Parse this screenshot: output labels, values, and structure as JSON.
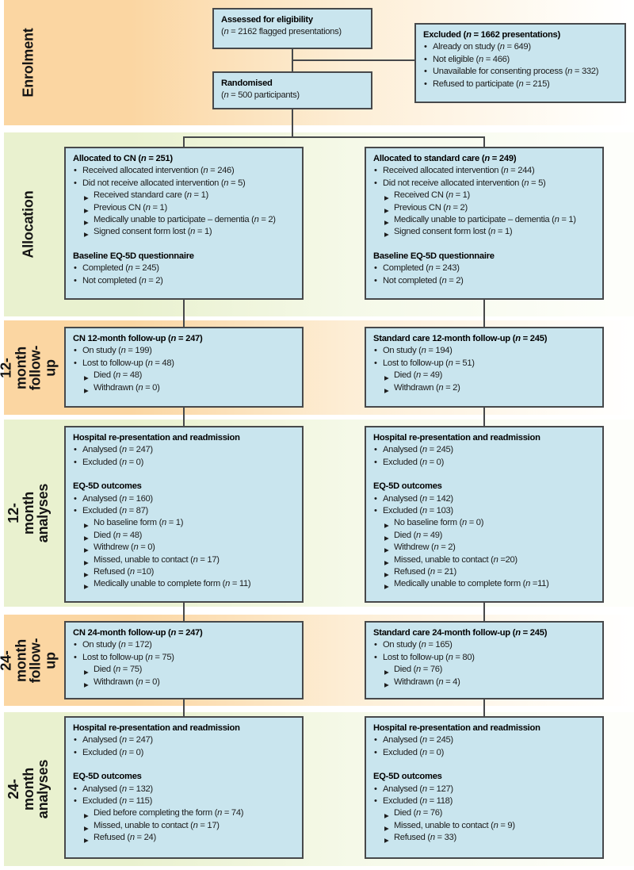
{
  "markers": {
    "bullet": "•",
    "sub": "▶"
  },
  "colors": {
    "band-peach": "#fbd6a2",
    "band-peach-mid": "#fdeed6",
    "band-peach-end": "#fffdf9",
    "band-green": "#e9f1cf",
    "band-green-mid": "#f5f9e8",
    "band-green-end": "#fdfefa",
    "box-fill": "#c9e5ee",
    "box-border": "#47494b",
    "line": "#47494b",
    "text": "#1c1c1c"
  },
  "sections": [
    {
      "id": "enrolment",
      "label": "Enrolment",
      "tone": "peach"
    },
    {
      "id": "allocation",
      "label": "Allocation",
      "tone": "green"
    },
    {
      "id": "follow-up-12",
      "label": "12-month\nfollow-up",
      "tone": "peach"
    },
    {
      "id": "analyses-12",
      "label": "12-month analyses",
      "tone": "green"
    },
    {
      "id": "follow-up-24",
      "label": "24-month\nfollow-up",
      "tone": "peach"
    },
    {
      "id": "analyses-24",
      "label": "24-month analyses",
      "tone": "green"
    }
  ],
  "boxes": {
    "assessed": {
      "lines": [
        {
          "t": "head",
          "text": "Assessed for eligibility"
        },
        {
          "t": "p",
          "text": "(n = 2162 flagged presentations)"
        }
      ]
    },
    "excluded": {
      "lines": [
        {
          "t": "head",
          "text": "Excluded (n = 1662 presentations)"
        },
        {
          "t": "b",
          "text": "Already on study (n = 649)"
        },
        {
          "t": "b",
          "text": "Not eligible (n = 466)"
        },
        {
          "t": "b",
          "text": "Unavailable for consenting process (n = 332)"
        },
        {
          "t": "b",
          "text": "Refused to participate (n = 215)"
        }
      ]
    },
    "randomised": {
      "lines": [
        {
          "t": "head",
          "text": "Randomised"
        },
        {
          "t": "p",
          "text": "(n = 500 participants)"
        }
      ]
    },
    "alloc_cn": {
      "lines": [
        {
          "t": "head",
          "text": "Allocated to CN (n = 251)"
        },
        {
          "t": "b",
          "text": "Received allocated intervention (n = 246)"
        },
        {
          "t": "b",
          "text": "Did not receive allocated intervention (n = 5)"
        },
        {
          "t": "s",
          "text": "Received standard care (n = 1)"
        },
        {
          "t": "s",
          "text": "Previous CN (n = 1)"
        },
        {
          "t": "s",
          "text": "Medically unable to participate – dementia (n = 2)"
        },
        {
          "t": "s",
          "text": "Signed consent form lost (n = 1)"
        },
        {
          "t": "gap"
        },
        {
          "t": "head",
          "text": "Baseline EQ-5D questionnaire"
        },
        {
          "t": "b",
          "text": "Completed (n = 245)"
        },
        {
          "t": "b",
          "text": "Not completed (n = 2)"
        }
      ]
    },
    "alloc_sc": {
      "lines": [
        {
          "t": "head",
          "text": "Allocated to standard care (n = 249)"
        },
        {
          "t": "b",
          "text": "Received allocated intervention (n = 244)"
        },
        {
          "t": "b",
          "text": "Did not receive allocated intervention (n = 5)"
        },
        {
          "t": "s",
          "text": "Received CN (n = 1)"
        },
        {
          "t": "s",
          "text": "Previous CN (n = 2)"
        },
        {
          "t": "s",
          "text": "Medically unable to participate – dementia (n = 1)"
        },
        {
          "t": "s",
          "text": "Signed consent form lost (n = 1)"
        },
        {
          "t": "gap"
        },
        {
          "t": "head",
          "text": "Baseline EQ-5D questionnaire"
        },
        {
          "t": "b",
          "text": "Completed (n = 243)"
        },
        {
          "t": "b",
          "text": "Not completed (n = 2)"
        }
      ]
    },
    "fu12_cn": {
      "lines": [
        {
          "t": "head",
          "text": "CN 12-month follow-up (n = 247)"
        },
        {
          "t": "b",
          "text": "On study (n = 199)"
        },
        {
          "t": "b",
          "text": "Lost to follow-up (n = 48)"
        },
        {
          "t": "s",
          "text": "Died (n = 48)"
        },
        {
          "t": "s",
          "text": "Withdrawn (n = 0)"
        }
      ]
    },
    "fu12_sc": {
      "lines": [
        {
          "t": "head",
          "text": "Standard care 12-month follow-up (n = 245)"
        },
        {
          "t": "b",
          "text": "On study (n = 194)"
        },
        {
          "t": "b",
          "text": "Lost to follow-up (n = 51)"
        },
        {
          "t": "s",
          "text": "Died (n = 49)"
        },
        {
          "t": "s",
          "text": "Withdrawn (n = 2)"
        }
      ]
    },
    "an12_cn": {
      "lines": [
        {
          "t": "head",
          "text": "Hospital re-presentation and readmission"
        },
        {
          "t": "b",
          "text": "Analysed (n = 247)"
        },
        {
          "t": "b",
          "text": "Excluded (n = 0)"
        },
        {
          "t": "gap"
        },
        {
          "t": "head",
          "text": "EQ-5D outcomes"
        },
        {
          "t": "b",
          "text": "Analysed (n = 160)"
        },
        {
          "t": "b",
          "text": "Excluded (n = 87)"
        },
        {
          "t": "s",
          "text": "No baseline form (n = 1)"
        },
        {
          "t": "s",
          "text": "Died (n = 48)"
        },
        {
          "t": "s",
          "text": "Withdrew (n = 0)"
        },
        {
          "t": "s",
          "text": "Missed, unable to contact (n = 17)"
        },
        {
          "t": "s",
          "text": "Refused (n =10)"
        },
        {
          "t": "s",
          "text": "Medically unable to complete form (n = 11)"
        }
      ]
    },
    "an12_sc": {
      "lines": [
        {
          "t": "head",
          "text": "Hospital re-presentation and readmission"
        },
        {
          "t": "b",
          "text": "Analysed (n = 245)"
        },
        {
          "t": "b",
          "text": "Excluded (n = 0)"
        },
        {
          "t": "gap"
        },
        {
          "t": "head",
          "text": "EQ-5D outcomes"
        },
        {
          "t": "b",
          "text": "Analysed (n = 142)"
        },
        {
          "t": "b",
          "text": "Excluded (n = 103)"
        },
        {
          "t": "s",
          "text": "No baseline form (n = 0)"
        },
        {
          "t": "s",
          "text": "Died (n = 49)"
        },
        {
          "t": "s",
          "text": "Withdrew (n = 2)"
        },
        {
          "t": "s",
          "text": "Missed, unable to contact (n =20)"
        },
        {
          "t": "s",
          "text": "Refused (n = 21)"
        },
        {
          "t": "s",
          "text": "Medically unable to complete form (n =11)"
        }
      ]
    },
    "fu24_cn": {
      "lines": [
        {
          "t": "head",
          "text": "CN 24-month follow-up (n = 247)"
        },
        {
          "t": "b",
          "text": "On study (n = 172)"
        },
        {
          "t": "b",
          "text": "Lost to follow-up (n = 75)"
        },
        {
          "t": "s",
          "text": "Died (n = 75)"
        },
        {
          "t": "s",
          "text": "Withdrawn (n = 0)"
        }
      ]
    },
    "fu24_sc": {
      "lines": [
        {
          "t": "head",
          "text": "Standard care 24-month follow-up (n = 245)"
        },
        {
          "t": "b",
          "text": "On study (n = 165)"
        },
        {
          "t": "b",
          "text": "Lost to follow-up (n = 80)"
        },
        {
          "t": "s",
          "text": "Died (n = 76)"
        },
        {
          "t": "s",
          "text": "Withdrawn (n = 4)"
        }
      ]
    },
    "an24_cn": {
      "lines": [
        {
          "t": "head",
          "text": "Hospital re-presentation and readmission"
        },
        {
          "t": "b",
          "text": "Analysed (n = 247)"
        },
        {
          "t": "b",
          "text": "Excluded (n = 0)"
        },
        {
          "t": "gap"
        },
        {
          "t": "head",
          "text": "EQ-5D outcomes"
        },
        {
          "t": "b",
          "text": "Analysed (n = 132)"
        },
        {
          "t": "b",
          "text": "Excluded (n = 115)"
        },
        {
          "t": "s",
          "text": "Died before completing the form (n = 74)"
        },
        {
          "t": "s",
          "text": "Missed, unable to contact (n = 17)"
        },
        {
          "t": "s",
          "text": "Refused (n = 24)"
        }
      ]
    },
    "an24_sc": {
      "lines": [
        {
          "t": "head",
          "text": "Hospital re-presentation and readmission"
        },
        {
          "t": "b",
          "text": "Analysed (n = 245)"
        },
        {
          "t": "b",
          "text": "Excluded (n = 0)"
        },
        {
          "t": "gap"
        },
        {
          "t": "head",
          "text": "EQ-5D outcomes"
        },
        {
          "t": "b",
          "text": "Analysed (n = 127)"
        },
        {
          "t": "b",
          "text": "Excluded (n = 118)"
        },
        {
          "t": "s",
          "text": "Died (n = 76)"
        },
        {
          "t": "s",
          "text": "Missed, unable to contact (n = 9)"
        },
        {
          "t": "s",
          "text": "Refused (n = 33)"
        }
      ]
    }
  }
}
